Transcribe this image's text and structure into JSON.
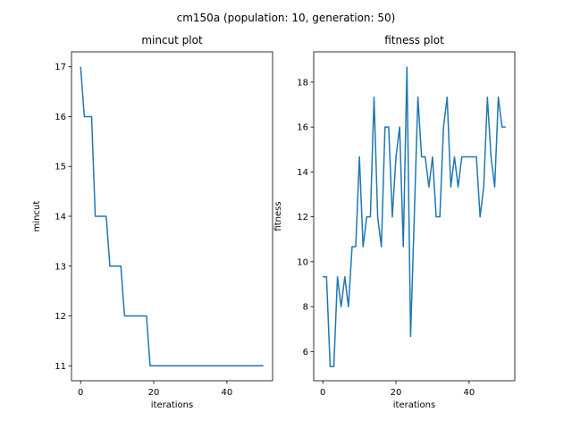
{
  "figure": {
    "suptitle": "cm150a (population: 10, generation: 50)"
  },
  "chart_data": [
    {
      "type": "line",
      "title": "mincut plot",
      "xlabel": "iterations",
      "ylabel": "mincut",
      "xlim": [
        -2.5,
        52.5
      ],
      "ylim": [
        10.7,
        17.3
      ],
      "xticks": [
        0,
        20,
        40
      ],
      "yticks": [
        11,
        12,
        13,
        14,
        15,
        16,
        17
      ],
      "grid": false,
      "color": "#1f77b4",
      "x": [
        0,
        1,
        2,
        3,
        4,
        5,
        6,
        7,
        8,
        9,
        10,
        11,
        12,
        13,
        14,
        15,
        16,
        17,
        18,
        19,
        20,
        21,
        22,
        23,
        24,
        25,
        26,
        27,
        28,
        29,
        30,
        31,
        32,
        33,
        34,
        35,
        36,
        37,
        38,
        39,
        40,
        41,
        42,
        43,
        44,
        45,
        46,
        47,
        48,
        49,
        50
      ],
      "y": [
        17,
        16,
        16,
        16,
        14,
        14,
        14,
        14,
        13,
        13,
        13,
        13,
        12,
        12,
        12,
        12,
        12,
        12,
        12,
        11,
        11,
        11,
        11,
        11,
        11,
        11,
        11,
        11,
        11,
        11,
        11,
        11,
        11,
        11,
        11,
        11,
        11,
        11,
        11,
        11,
        11,
        11,
        11,
        11,
        11,
        11,
        11,
        11,
        11,
        11,
        11
      ]
    },
    {
      "type": "line",
      "title": "fitness plot",
      "xlabel": "iterations",
      "ylabel": "fitness",
      "xlim": [
        -2.5,
        52.5
      ],
      "ylim": [
        4.7,
        19.35
      ],
      "xticks": [
        0,
        20,
        40
      ],
      "yticks": [
        6,
        8,
        10,
        12,
        14,
        16,
        18
      ],
      "grid": false,
      "color": "#1f77b4",
      "x": [
        0,
        1,
        2,
        3,
        4,
        5,
        6,
        7,
        8,
        9,
        10,
        11,
        12,
        13,
        14,
        15,
        16,
        17,
        18,
        19,
        20,
        21,
        22,
        23,
        24,
        25,
        26,
        27,
        28,
        29,
        30,
        31,
        32,
        33,
        34,
        35,
        36,
        37,
        38,
        39,
        40,
        41,
        42,
        43,
        44,
        45,
        46,
        47,
        48,
        49,
        50
      ],
      "y": [
        9.33,
        9.33,
        5.33,
        5.33,
        9.33,
        8.0,
        9.33,
        8.0,
        10.67,
        10.67,
        14.67,
        10.67,
        12.0,
        12.0,
        17.33,
        12.0,
        10.67,
        16.0,
        16.0,
        12.0,
        14.67,
        16.0,
        10.67,
        18.67,
        6.67,
        12.0,
        17.33,
        14.67,
        14.67,
        13.33,
        14.67,
        12.0,
        12.0,
        16.0,
        17.33,
        13.33,
        14.67,
        13.33,
        14.67,
        14.67,
        14.67,
        14.67,
        14.67,
        12.0,
        13.33,
        17.33,
        14.67,
        13.33,
        17.33,
        16.0,
        16.0
      ]
    }
  ]
}
